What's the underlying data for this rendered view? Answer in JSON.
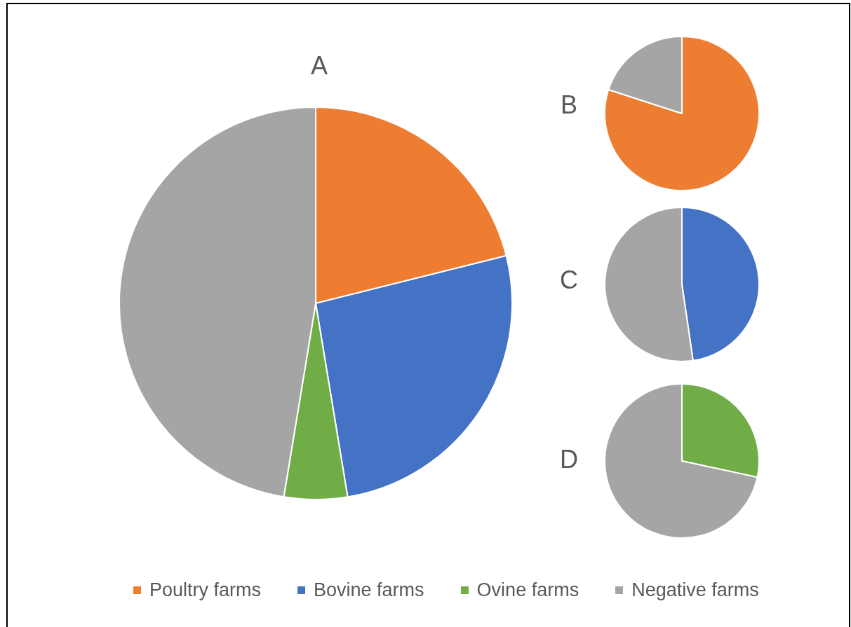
{
  "chart_data": [
    {
      "type": "pie",
      "title": "A",
      "categories": [
        "Poultry farms",
        "Bovine farms",
        "Ovine farms",
        "Negative farms"
      ],
      "values": [
        21.1,
        26.3,
        5.2,
        47.4
      ],
      "colors": [
        "#ed7d31",
        "#4472c4",
        "#70ad47",
        "#a5a5a5"
      ],
      "legend": "bottom"
    },
    {
      "type": "pie",
      "title": "B",
      "categories": [
        null,
        null
      ],
      "values": [
        80,
        20
      ],
      "colors": [
        "#ed7d31",
        "#a5a5a5"
      ]
    },
    {
      "type": "pie",
      "title": "C",
      "categories": [
        null,
        null
      ],
      "values": [
        47.7,
        52.3
      ],
      "colors": [
        "#4472c4",
        "#a5a5a5"
      ]
    },
    {
      "type": "pie",
      "title": "D",
      "categories": [
        null,
        null
      ],
      "values": [
        28.4,
        71.6
      ],
      "colors": [
        "#70ad47",
        "#a5a5a5"
      ]
    }
  ]
}
